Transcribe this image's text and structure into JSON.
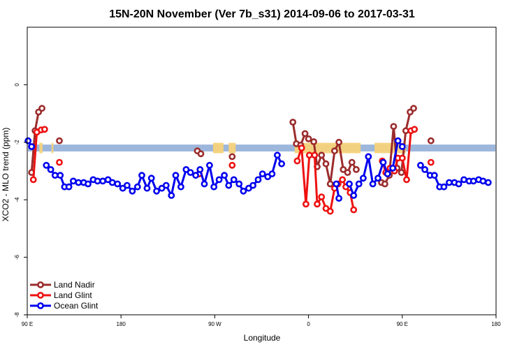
{
  "chart_data": {
    "type": "line",
    "title": "15N-20N November (Ver 7b_s31)   2014-09-06 to 2017-03-31",
    "xlabel": "Longitude",
    "ylabel": "XCO2 - MLO trend (ppm)",
    "xlim": [
      -90,
      180
    ],
    "ylim": [
      -8,
      2
    ],
    "x_ticks": [
      {
        "value": -90,
        "label": "90 E"
      },
      {
        "value": -36,
        "label": "180"
      },
      {
        "value": 18,
        "label": "90 W"
      },
      {
        "value": 72,
        "label": "0"
      },
      {
        "value": 126,
        "label": "90 E"
      },
      {
        "value": 180,
        "label": "180"
      }
    ],
    "y_ticks": [
      {
        "value": -8,
        "label": "-8"
      },
      {
        "value": -6,
        "label": "-6"
      },
      {
        "value": -4,
        "label": "-4"
      },
      {
        "value": -2,
        "label": "-2"
      },
      {
        "value": 0,
        "label": "0"
      }
    ],
    "grid": false,
    "legend_position": "bottom-left",
    "map_strip": {
      "y_center": -2.2,
      "ocean_color": "#9db7dc",
      "land_color": "#f5d27a"
    },
    "series": [
      {
        "name": "Land Nadir",
        "color": "#9b2c2c",
        "segments": [
          [
            [
              -87.5,
              -3.05
            ],
            [
              -85.5,
              -1.6
            ],
            [
              -83.5,
              -0.95
            ],
            [
              -81.5,
              -0.82
            ]
          ],
          [
            [
              -71.5,
              -1.95
            ]
          ],
          [
            [
              8,
              -2.3
            ],
            [
              10,
              -2.4
            ]
          ],
          [
            [
              28,
              -2.5
            ]
          ],
          [
            [
              63,
              -1.3
            ],
            [
              65,
              -2.05
            ],
            [
              67.5,
              -2.1
            ],
            [
              70,
              -1.7
            ],
            [
              72,
              -1.88
            ],
            [
              75,
              -1.98
            ],
            [
              77,
              -2.85
            ],
            [
              79.5,
              -2.45
            ],
            [
              82,
              -2.75
            ],
            [
              84.5,
              -3.45
            ],
            [
              87,
              -2.3
            ],
            [
              89.5,
              -2.0
            ],
            [
              92,
              -2.95
            ],
            [
              94.5,
              -3.05
            ],
            [
              97,
              -2.7
            ],
            [
              99.5,
              -2.95
            ]
          ],
          [
            [
              114,
              -3.4
            ],
            [
              116,
              -3.45
            ],
            [
              118.5,
              -3.15
            ],
            [
              121,
              -1.45
            ],
            [
              123,
              -2.9
            ],
            [
              125.5,
              -3.05
            ],
            [
              128,
              -1.6
            ],
            [
              130.5,
              -0.95
            ],
            [
              132.5,
              -0.82
            ]
          ],
          [
            [
              142.5,
              -1.95
            ]
          ]
        ]
      },
      {
        "name": "Land Glint",
        "color": "#ee1111",
        "segments": [
          [
            [
              -86.5,
              -3.3
            ],
            [
              -84.5,
              -1.65
            ],
            [
              -82,
              -1.57
            ],
            [
              -80,
              -1.55
            ]
          ],
          [
            [
              -71.5,
              -2.7
            ]
          ],
          [
            [
              9,
              -3.1
            ]
          ],
          [
            [
              28,
              -2.8
            ]
          ],
          [
            [
              65.5,
              -2.65
            ],
            [
              68,
              -2.2
            ],
            [
              70.5,
              -4.15
            ],
            [
              72.5,
              -2.45
            ],
            [
              75.5,
              -2.45
            ],
            [
              77,
              -4.15
            ],
            [
              79.5,
              -3.9
            ],
            [
              82,
              -4.3
            ],
            [
              84.5,
              -4.4
            ],
            [
              87,
              -3.6
            ],
            [
              89,
              -3.45
            ],
            [
              91.5,
              -3.3
            ],
            [
              93.5,
              -3.55
            ],
            [
              96,
              -3.75
            ],
            [
              98,
              -4.35
            ]
          ],
          [
            [
              114.5,
              -2.65
            ],
            [
              116.5,
              -3.05
            ],
            [
              119,
              -2.9
            ],
            [
              121.5,
              -3.0
            ],
            [
              123.5,
              -2.55
            ],
            [
              126,
              -2.55
            ],
            [
              128.5,
              -3.3
            ],
            [
              131,
              -1.6
            ],
            [
              133,
              -1.55
            ]
          ],
          [
            [
              142.5,
              -2.7
            ]
          ]
        ]
      },
      {
        "name": "Ocean Glint",
        "color": "#0000ee",
        "segments": [
          [
            [
              -89.5,
              -1.95
            ],
            [
              -87.5,
              -2.15
            ]
          ],
          [
            [
              -79,
              -2.8
            ],
            [
              -76.5,
              -2.95
            ],
            [
              -74,
              -3.15
            ],
            [
              -71,
              -3.15
            ],
            [
              -68.5,
              -3.55
            ],
            [
              -66,
              -3.55
            ],
            [
              -63.5,
              -3.35
            ],
            [
              -60.5,
              -3.4
            ],
            [
              -57.5,
              -3.4
            ],
            [
              -55,
              -3.45
            ],
            [
              -52,
              -3.3
            ],
            [
              -49.5,
              -3.35
            ],
            [
              -46.5,
              -3.35
            ],
            [
              -43.5,
              -3.3
            ],
            [
              -41,
              -3.4
            ],
            [
              -38,
              -3.45
            ],
            [
              -35,
              -3.6
            ],
            [
              -32.5,
              -3.5
            ],
            [
              -29.5,
              -3.7
            ],
            [
              -26.5,
              -3.55
            ],
            [
              -24,
              -3.15
            ],
            [
              -21,
              -3.6
            ],
            [
              -18.5,
              -3.25
            ],
            [
              -15.5,
              -3.7
            ],
            [
              -12.5,
              -3.6
            ],
            [
              -10,
              -3.5
            ],
            [
              -7,
              -3.85
            ],
            [
              -4.5,
              -3.15
            ],
            [
              -1.5,
              -3.55
            ],
            [
              1.5,
              -2.95
            ],
            [
              4,
              -3.05
            ],
            [
              7,
              -3.15
            ],
            [
              9.5,
              -2.95
            ],
            [
              12,
              -3.45
            ],
            [
              15,
              -2.8
            ],
            [
              17.5,
              -3.55
            ],
            [
              20.5,
              -3.3
            ],
            [
              23.5,
              -3.15
            ],
            [
              26,
              -3.5
            ],
            [
              29,
              -3.3
            ],
            [
              32,
              -3.45
            ],
            [
              34.5,
              -3.7
            ],
            [
              37.5,
              -3.6
            ],
            [
              40,
              -3.5
            ],
            [
              43,
              -3.3
            ],
            [
              45.5,
              -3.1
            ],
            [
              48.5,
              -3.2
            ],
            [
              51,
              -3.1
            ],
            [
              54,
              -2.45
            ],
            [
              56.5,
              -2.75
            ]
          ],
          [
            [
              88,
              -3.45
            ],
            [
              89.5,
              -3.95
            ]
          ],
          [
            [
              95.5,
              -3.45
            ],
            [
              98,
              -3.85
            ],
            [
              101,
              -3.45
            ],
            [
              103.5,
              -3.25
            ],
            [
              106.5,
              -2.5
            ],
            [
              109,
              -3.45
            ],
            [
              112,
              -3.25
            ],
            [
              115,
              -2.7
            ],
            [
              117.5,
              -3.1
            ],
            [
              120.5,
              -2.9
            ],
            [
              123.5,
              -1.95
            ],
            [
              126,
              -2.15
            ]
          ],
          [
            [
              136.5,
              -2.8
            ],
            [
              139,
              -2.95
            ],
            [
              142,
              -3.15
            ],
            [
              144.5,
              -3.15
            ],
            [
              147.5,
              -3.55
            ],
            [
              150,
              -3.55
            ],
            [
              153,
              -3.4
            ],
            [
              156,
              -3.4
            ],
            [
              158.5,
              -3.45
            ],
            [
              161.5,
              -3.3
            ],
            [
              164.5,
              -3.35
            ],
            [
              167,
              -3.35
            ],
            [
              170,
              -3.3
            ],
            [
              172.5,
              -3.35
            ],
            [
              175.5,
              -3.4
            ]
          ]
        ]
      }
    ]
  }
}
